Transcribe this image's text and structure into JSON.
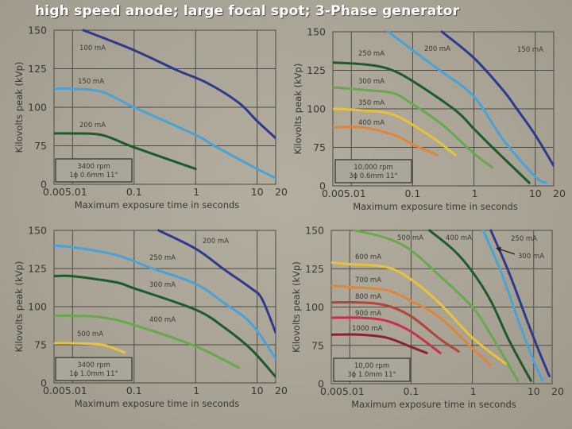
{
  "title": "high speed anode; large focal spot; 3-Phase generator",
  "axes": {
    "ylabel": "Kilovolts peak (kVp)",
    "xlabel": "Maximum exposure time in seconds",
    "yticks": [
      "150",
      "125",
      "100",
      "75",
      "0"
    ],
    "xticks": [
      "0.005",
      ".01",
      "0.1",
      "1",
      "10",
      "20"
    ]
  },
  "colors": {
    "background": "#a9a496",
    "grid": "#4e4b44",
    "text": "#3a3832",
    "title": "#ffffff"
  },
  "panels": [
    {
      "id": "top-left",
      "spec_line1": "3400 rpm",
      "spec_line2": "1ϕ 0.6mm 11°"
    },
    {
      "id": "top-right",
      "spec_line1": "10,000 rpm",
      "spec_line2": "3ϕ 0.6mm 11°"
    },
    {
      "id": "bottom-left",
      "spec_line1": "3400 rpm",
      "spec_line2": "1ϕ 1.0mm 11°"
    },
    {
      "id": "bottom-right",
      "spec_line1": "10,00 rpm",
      "spec_line2": "3ϕ 1.0mm 11°"
    }
  ],
  "chart_data": [
    {
      "type": "line",
      "title": "3400 rpm, 1ϕ 0.6mm 11°",
      "xlabel": "Maximum exposure time in seconds",
      "ylabel": "Kilovolts peak (kVp)",
      "xscale": "log",
      "xlim": [
        0.005,
        20
      ],
      "ylim": [
        0,
        150
      ],
      "yticks": [
        0,
        75,
        100,
        125,
        150
      ],
      "xticks": [
        0.005,
        0.01,
        0.1,
        1,
        10,
        20
      ],
      "grid": true,
      "series": [
        {
          "name": "100 mA",
          "color": "#2e3a8c",
          "x": [
            0.015,
            0.1,
            0.5,
            1.5,
            5,
            10,
            20
          ],
          "y": [
            150,
            137,
            124,
            116,
            103,
            91,
            80
          ]
        },
        {
          "name": "150 mA",
          "color": "#4aa3d6",
          "x": [
            0.005,
            0.01,
            0.03,
            0.1,
            1,
            2,
            10,
            20
          ],
          "y": [
            112,
            112,
            110,
            100,
            82,
            75,
            60,
            54
          ]
        },
        {
          "name": "200 mA",
          "color": "#1f5a2a",
          "x": [
            0.005,
            0.01,
            0.03,
            0.1,
            1
          ],
          "y": [
            83,
            83,
            82,
            74,
            60
          ]
        }
      ]
    },
    {
      "type": "line",
      "title": "10,000 rpm, 3ϕ 0.6mm 11°",
      "xlabel": "Maximum exposure time in seconds",
      "ylabel": "Kilovolts peak (kVp)",
      "xscale": "log",
      "xlim": [
        0.005,
        20
      ],
      "ylim": [
        0,
        150
      ],
      "yticks": [
        0,
        75,
        100,
        125,
        150
      ],
      "xticks": [
        0.005,
        0.01,
        0.1,
        1,
        10,
        20
      ],
      "grid": true,
      "series": [
        {
          "name": "150 mA",
          "color": "#2e3a8c",
          "x": [
            0.3,
            1,
            3,
            5,
            10,
            20
          ],
          "y": [
            150,
            133,
            112,
            100,
            83,
            63
          ]
        },
        {
          "name": "200 mA",
          "color": "#4aa3d6",
          "x": [
            0.04,
            0.1,
            0.3,
            1,
            3,
            10,
            15
          ],
          "y": [
            150,
            138,
            124,
            108,
            80,
            56,
            52
          ]
        },
        {
          "name": "250 mA",
          "color": "#1f5a2a",
          "x": [
            0.005,
            0.015,
            0.04,
            0.1,
            0.5,
            1,
            2,
            8
          ],
          "y": [
            130,
            129,
            126,
            118,
            99,
            87,
            75,
            52
          ]
        },
        {
          "name": "300 mA",
          "color": "#6aa84f",
          "x": [
            0.005,
            0.02,
            0.05,
            0.1,
            0.3,
            1,
            2
          ],
          "y": [
            114,
            112,
            110,
            103,
            90,
            71,
            62
          ]
        },
        {
          "name": "350 mA",
          "color": "#e8c23a",
          "x": [
            0.005,
            0.015,
            0.05,
            0.2,
            0.5
          ],
          "y": [
            100,
            99,
            96,
            82,
            70
          ]
        },
        {
          "name": "400 mA",
          "color": "#e0853c",
          "x": [
            0.005,
            0.015,
            0.05,
            0.1,
            0.25
          ],
          "y": [
            88,
            88,
            83,
            77,
            70
          ]
        }
      ]
    },
    {
      "type": "line",
      "title": "3400 rpm, 1ϕ 1.0mm 11°",
      "xlabel": "Maximum exposure time in seconds",
      "ylabel": "Kilovolts peak (kVp)",
      "xscale": "log",
      "xlim": [
        0.005,
        20
      ],
      "ylim": [
        0,
        150
      ],
      "yticks": [
        0,
        75,
        100,
        125,
        150
      ],
      "xticks": [
        0.005,
        0.01,
        0.1,
        1,
        10,
        20
      ],
      "grid": true,
      "series": [
        {
          "name": "200 mA",
          "color": "#2e3a8c",
          "x": [
            0.25,
            1,
            3,
            8,
            12,
            20
          ],
          "y": [
            150,
            138,
            124,
            112,
            105,
            83
          ]
        },
        {
          "name": "250 mA",
          "color": "#4aa3d6",
          "x": [
            0.005,
            0.01,
            0.05,
            0.2,
            1,
            3,
            8,
            20
          ],
          "y": [
            140,
            139,
            134,
            125,
            115,
            102,
            89,
            66
          ]
        },
        {
          "name": "300 mA",
          "color": "#1f5a2a",
          "x": [
            0.005,
            0.01,
            0.05,
            0.1,
            1,
            3,
            8,
            20
          ],
          "y": [
            120,
            120,
            116,
            112,
            98,
            86,
            72,
            54
          ]
        },
        {
          "name": "400 mA",
          "color": "#6aa84f",
          "x": [
            0.005,
            0.01,
            0.03,
            0.1,
            1,
            5
          ],
          "y": [
            94,
            94,
            93,
            88,
            74,
            60
          ]
        },
        {
          "name": "500 mA",
          "color": "#e8c23a",
          "x": [
            0.005,
            0.01,
            0.03,
            0.07
          ],
          "y": [
            76,
            76,
            75,
            70
          ]
        }
      ]
    },
    {
      "type": "line",
      "title": "10,00 rpm, 3ϕ 1.0mm 11°",
      "xlabel": "Maximum exposure time in seconds",
      "ylabel": "Kilovolts peak (kVp)",
      "xscale": "log",
      "xlim": [
        0.005,
        20
      ],
      "ylim": [
        0,
        150
      ],
      "yticks": [
        0,
        75,
        100,
        125,
        150
      ],
      "xticks": [
        0.005,
        0.01,
        0.1,
        1,
        10,
        20
      ],
      "grid": true,
      "series": [
        {
          "name": "250 mA",
          "color": "#2e3a8c",
          "x": [
            2,
            4,
            8,
            12,
            18
          ],
          "y": [
            150,
            122,
            90,
            72,
            55
          ]
        },
        {
          "name": "300 mA",
          "color": "#4aa3d6",
          "x": [
            1.5,
            3,
            6,
            10,
            14
          ],
          "y": [
            150,
            122,
            88,
            65,
            52
          ]
        },
        {
          "name": "400 mA",
          "color": "#1f5a2a",
          "x": [
            0.2,
            0.5,
            1,
            2,
            4,
            9
          ],
          "y": [
            150,
            137,
            123,
            104,
            78,
            52
          ]
        },
        {
          "name": "500 mA",
          "color": "#6aa84f",
          "x": [
            0.012,
            0.04,
            0.1,
            0.3,
            1,
            2,
            5.5
          ],
          "y": [
            150,
            145,
            137,
            120,
            100,
            82,
            52
          ]
        },
        {
          "name": "600 mA",
          "color": "#e8c23a",
          "x": [
            0.005,
            0.01,
            0.04,
            0.1,
            0.3,
            1,
            3.5
          ],
          "y": [
            129,
            128,
            126,
            118,
            102,
            80,
            63
          ]
        },
        {
          "name": "700 mA",
          "color": "#e0853c",
          "x": [
            0.005,
            0.01,
            0.04,
            0.1,
            0.3,
            1,
            2
          ],
          "y": [
            114,
            113,
            111,
            104,
            93,
            73,
            62
          ]
        },
        {
          "name": "800 mA",
          "color": "#b2443a",
          "x": [
            0.005,
            0.015,
            0.04,
            0.1,
            0.3,
            0.6
          ],
          "y": [
            103,
            103,
            101,
            94,
            79,
            71
          ]
        },
        {
          "name": "900 mA",
          "color": "#cc2f4a",
          "x": [
            0.005,
            0.015,
            0.04,
            0.1,
            0.3
          ],
          "y": [
            93,
            93,
            91,
            84,
            70
          ]
        },
        {
          "name": "1000 mA",
          "color": "#8c2030",
          "x": [
            0.005,
            0.015,
            0.04,
            0.1,
            0.18
          ],
          "y": [
            82,
            82,
            80,
            74,
            70
          ]
        }
      ]
    }
  ]
}
